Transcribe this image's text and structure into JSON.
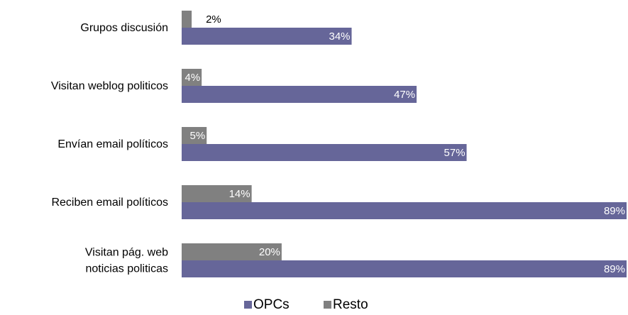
{
  "chart_data": {
    "type": "bar",
    "orientation": "horizontal",
    "categories": [
      "Grupos discusión",
      "Visitan weblog politicos",
      "Envían email políticos",
      "Reciben email políticos",
      "Visitan pág. web\nnoticias politicas"
    ],
    "series": [
      {
        "name": "OPCs",
        "color": "#666699",
        "values": [
          34,
          47,
          57,
          89,
          89
        ],
        "labels": [
          "34%",
          "47%",
          "57%",
          "89%",
          "89%"
        ]
      },
      {
        "name": "Resto",
        "color": "#808080",
        "values": [
          2,
          4,
          5,
          14,
          20
        ],
        "labels": [
          "2%",
          "4%",
          "5%",
          "14%",
          "20%"
        ]
      }
    ],
    "xlim": [
      0,
      89
    ],
    "grid": false,
    "legend": "bottom"
  }
}
